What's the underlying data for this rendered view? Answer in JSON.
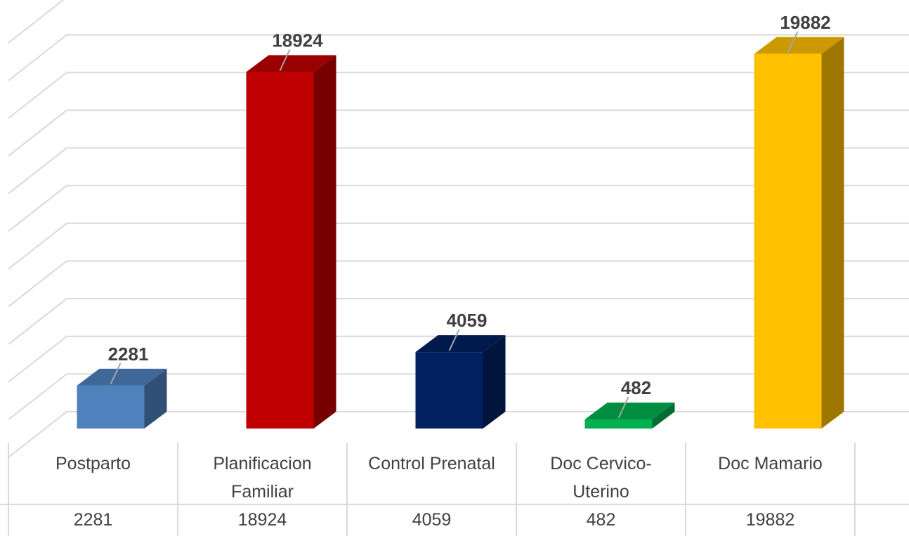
{
  "chart_data": {
    "type": "bar3d",
    "categories": [
      "Postparto",
      "Planificacion Familiar",
      "Control Prenatal",
      "Doc Cervico-Uterino",
      "Doc Mamario"
    ],
    "values": [
      2281,
      18924,
      4059,
      482,
      19882
    ],
    "colors": [
      "#4f81bd",
      "#c00000",
      "#002060",
      "#00b050",
      "#ffc000"
    ],
    "ylim": [
      0,
      22000
    ],
    "yticks": [
      0,
      2000,
      4000,
      6000,
      8000,
      10000,
      12000,
      14000,
      16000,
      18000,
      20000,
      22000
    ],
    "grid": true
  }
}
